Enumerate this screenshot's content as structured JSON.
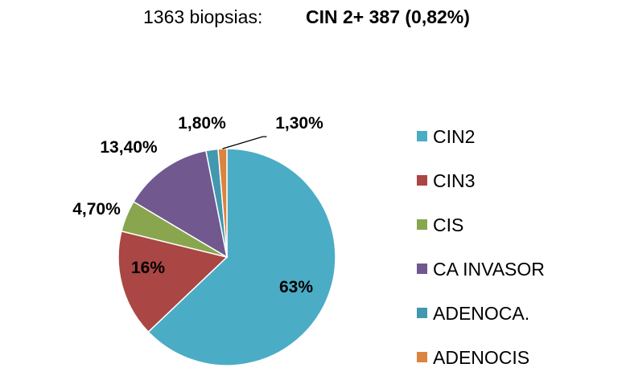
{
  "header": {
    "left_text": "1363 biopsias:",
    "right_text": "CIN 2+ 387 (0,82%)"
  },
  "chart_data": {
    "type": "pie",
    "title": "",
    "legend_position": "right",
    "series": [
      {
        "name": "CIN2",
        "value": 63.0,
        "label": "63%",
        "color": "#4BACC6"
      },
      {
        "name": "CIN3",
        "value": 16.0,
        "label": "16%",
        "color": "#AA4643"
      },
      {
        "name": "CIS",
        "value": 4.7,
        "label": "4,70%",
        "color": "#89A54E"
      },
      {
        "name": "CA INVASOR",
        "value": 13.4,
        "label": "13,40%",
        "color": "#71588F"
      },
      {
        "name": "ADENOCA.",
        "value": 1.8,
        "label": "1,80%",
        "color": "#4198AF"
      },
      {
        "name": "ADENOCIS",
        "value": 1.3,
        "label": "1,30%",
        "color": "#DB843D"
      }
    ]
  }
}
